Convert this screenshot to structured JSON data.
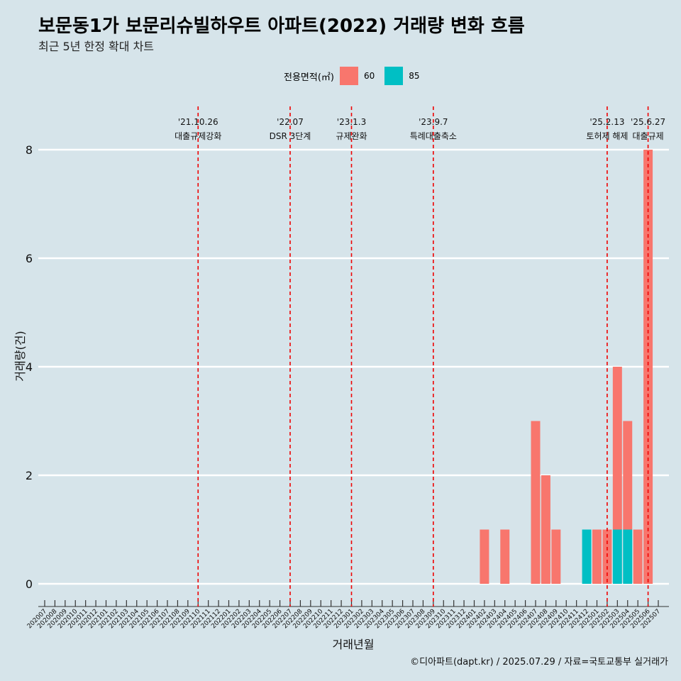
{
  "title": "보문동1가 보문리슈빌하우트 아파트(2022) 거래량 변화 흐름",
  "subtitle": "최근 5년 한정 확대 차트",
  "legend": {
    "title": "전용면적(㎡)",
    "items": [
      {
        "label": "60",
        "color": "#f8766d"
      },
      {
        "label": "85",
        "color": "#00bfc4"
      }
    ]
  },
  "caption": "©디아파트(dapt.kr) / 2025.07.29 / 자료=국토교통부 실거래가",
  "chart_data": {
    "type": "bar",
    "xlabel": "거래년월",
    "ylabel": "거래량(건)",
    "ylim": [
      0,
      8
    ],
    "yticks": [
      0,
      2,
      4,
      6,
      8
    ],
    "grid": true,
    "legend_position": "top",
    "categories": [
      "202007",
      "202008",
      "202009",
      "202010",
      "202011",
      "202012",
      "202101",
      "202102",
      "202103",
      "202104",
      "202105",
      "202106",
      "202107",
      "202108",
      "202109",
      "202110",
      "202111",
      "202112",
      "202201",
      "202202",
      "202203",
      "202204",
      "202205",
      "202206",
      "202207",
      "202208",
      "202209",
      "202210",
      "202211",
      "202212",
      "202301",
      "202302",
      "202303",
      "202304",
      "202305",
      "202306",
      "202307",
      "202308",
      "202309",
      "202310",
      "202311",
      "202312",
      "202401",
      "202402",
      "202403",
      "202404",
      "202405",
      "202406",
      "202407",
      "202408",
      "202409",
      "202410",
      "202411",
      "202412",
      "202501",
      "202502",
      "202503",
      "202504",
      "202505",
      "202506",
      "202507"
    ],
    "series": [
      {
        "name": "60",
        "color": "#f8766d",
        "points": [
          {
            "x": "202402",
            "y": 1
          },
          {
            "x": "202404",
            "y": 1
          },
          {
            "x": "202407",
            "y": 3
          },
          {
            "x": "202408",
            "y": 2
          },
          {
            "x": "202409",
            "y": 1
          },
          {
            "x": "202501",
            "y": 1
          },
          {
            "x": "202502",
            "y": 1
          },
          {
            "x": "202503",
            "y": 3
          },
          {
            "x": "202504",
            "y": 2
          },
          {
            "x": "202505",
            "y": 1
          },
          {
            "x": "202506",
            "y": 8
          }
        ]
      },
      {
        "name": "85",
        "color": "#00bfc4",
        "points": [
          {
            "x": "202412",
            "y": 1
          },
          {
            "x": "202503",
            "y": 1
          },
          {
            "x": "202504",
            "y": 1
          }
        ]
      }
    ],
    "annotations": [
      {
        "x": "202110",
        "date": "'21.10.26",
        "label": "대출규제강화"
      },
      {
        "x": "202207",
        "date": "'22.07",
        "label": "DSR 3단계"
      },
      {
        "x": "202301",
        "date": "'23.1.3",
        "label": "규제완화"
      },
      {
        "x": "202309",
        "date": "'23.9.7",
        "label": "특례대출축소"
      },
      {
        "x": "202502",
        "date": "'25.2.13",
        "label": "토허제 해제"
      },
      {
        "x": "202506",
        "date": "'25.6.27",
        "label": "대출규제"
      }
    ]
  }
}
